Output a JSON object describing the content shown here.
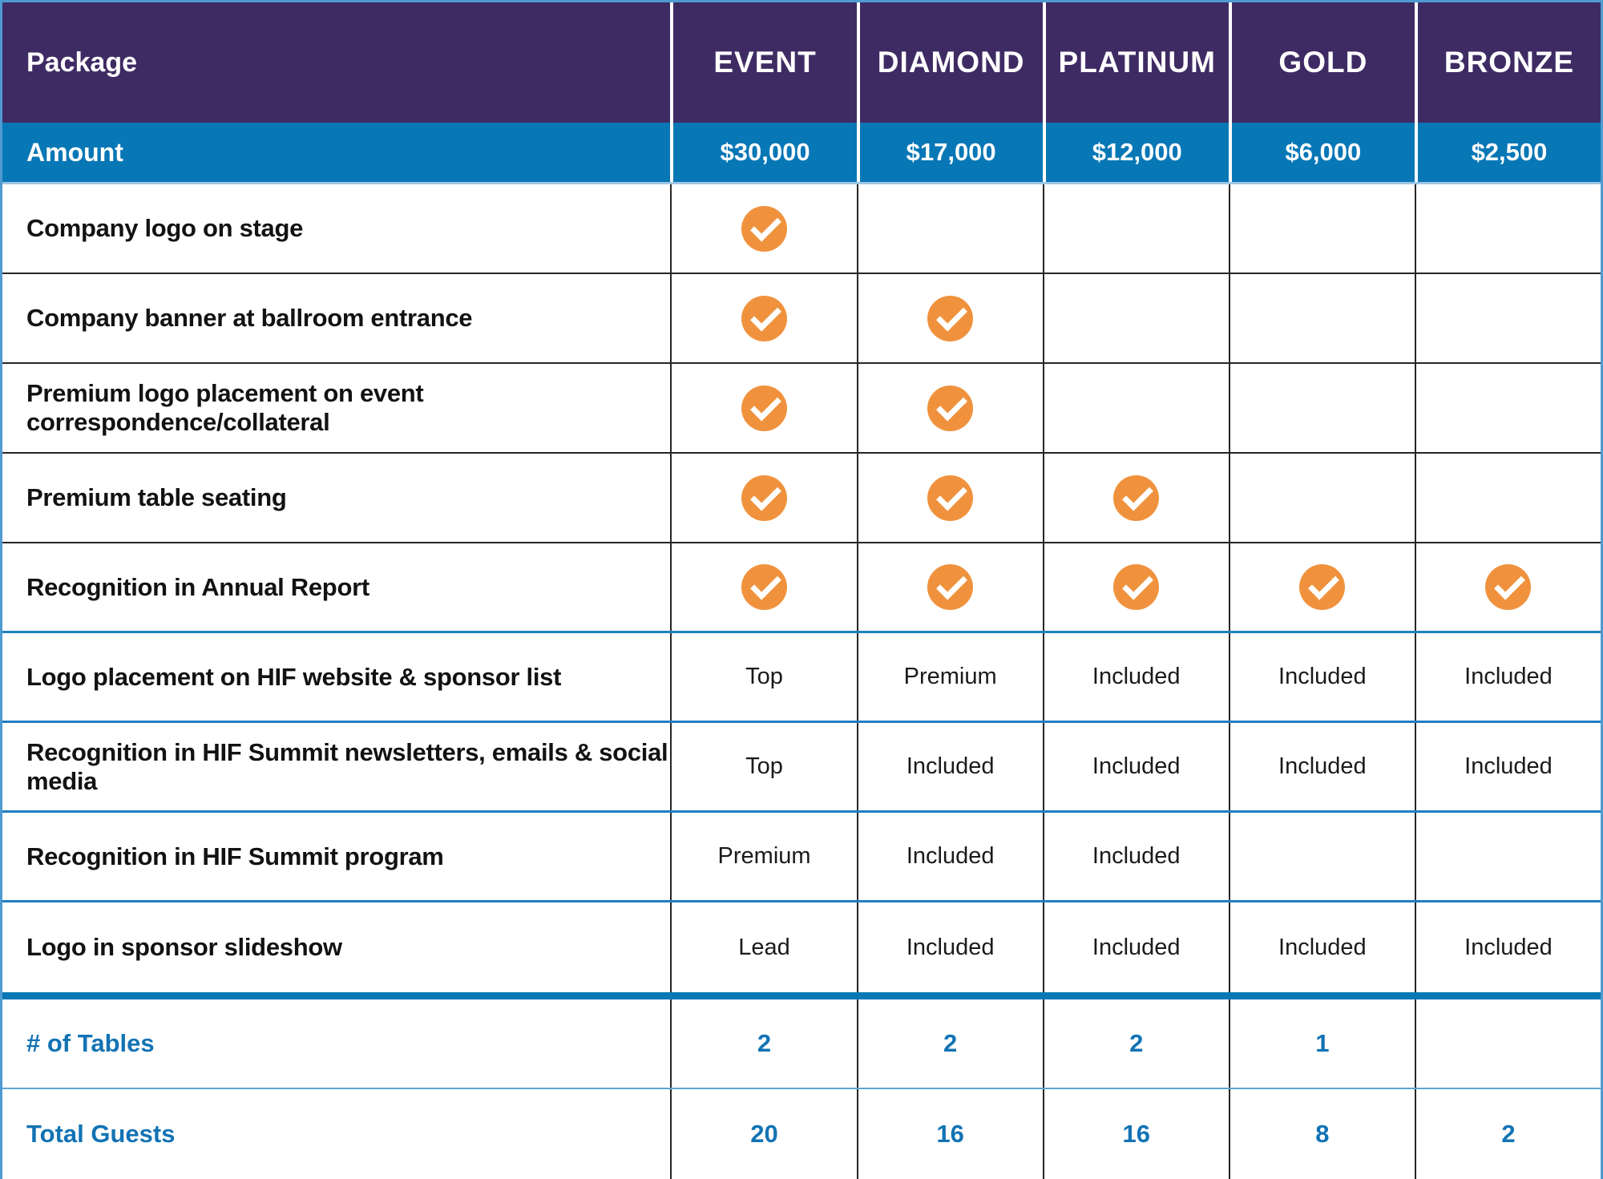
{
  "header": {
    "package_label": "Package",
    "columns": [
      "EVENT",
      "DIAMOND",
      "PLATINUM",
      "GOLD",
      "BRONZE"
    ]
  },
  "amount_row": {
    "label": "Amount",
    "values": [
      "$30,000",
      "$17,000",
      "$12,000",
      "$6,000",
      "$2,500"
    ]
  },
  "feature_rows": [
    {
      "label": "Company logo on stage",
      "cells": [
        "check",
        "",
        "",
        "",
        ""
      ]
    },
    {
      "label": "Company banner at ballroom entrance",
      "cells": [
        "check",
        "check",
        "",
        "",
        ""
      ]
    },
    {
      "label": "Premium logo placement on event correspondence/collateral",
      "cells": [
        "check",
        "check",
        "",
        "",
        ""
      ]
    },
    {
      "label": "Premium table seating",
      "cells": [
        "check",
        "check",
        "check",
        "",
        ""
      ]
    },
    {
      "label": "Recognition in Annual Report",
      "cells": [
        "check",
        "check",
        "check",
        "check",
        "check"
      ]
    },
    {
      "label": "Logo placement on HIF website & sponsor list",
      "cells": [
        "Top",
        "Premium",
        "Included",
        "Included",
        "Included"
      ]
    },
    {
      "label": "Recognition in HIF Summit newsletters, emails & social media",
      "cells": [
        "Top",
        "Included",
        "Included",
        "Included",
        "Included"
      ]
    },
    {
      "label": "Recognition in HIF Summit program",
      "cells": [
        "Premium",
        "Included",
        "Included",
        "",
        ""
      ]
    },
    {
      "label": "Logo in sponsor slideshow",
      "cells": [
        "Lead",
        "Included",
        "Included",
        "Included",
        "Included"
      ]
    }
  ],
  "summary_rows": [
    {
      "label": "# of Tables",
      "values": [
        "2",
        "2",
        "2",
        "1",
        ""
      ]
    },
    {
      "label": "Total Guests",
      "values": [
        "20",
        "16",
        "16",
        "8",
        "2"
      ]
    }
  ],
  "icons": {
    "check": "check-icon"
  },
  "colors": {
    "header_purple": "#3F2B63",
    "accent_blue": "#0877B6",
    "check_orange": "#F0923D",
    "summary_text_blue": "#1273B4",
    "outer_border_blue": "#4E9BD2",
    "dark_divider": "#262626",
    "blue_divider": "#1F7FC0"
  }
}
